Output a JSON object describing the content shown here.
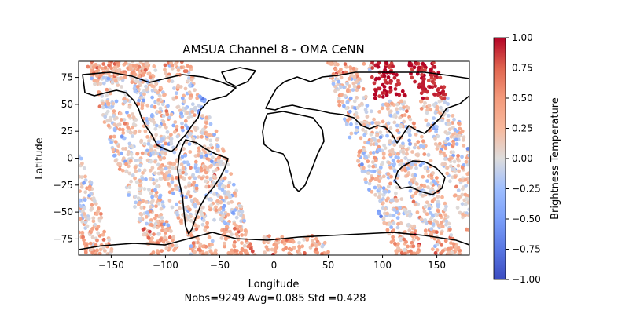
{
  "chart_data": {
    "type": "scatter",
    "title": "AMSUA Channel 8 - OMA CeNN",
    "xlabel": "Longitude",
    "ylabel": "Latitude",
    "xlim": [
      -180,
      180
    ],
    "ylim": [
      -90,
      90
    ],
    "xticks": [
      -150,
      -100,
      -50,
      0,
      50,
      100,
      150
    ],
    "yticks": [
      -75,
      -50,
      -25,
      0,
      25,
      50,
      75
    ],
    "stats_text": "Nobs=9249 Avg=0.085 Std =0.428",
    "colorbar": {
      "label": "Brightness Temperature",
      "colormap": "coolwarm",
      "vmin": -1.0,
      "vmax": 1.0,
      "ticks": [
        "1.00",
        "0.75",
        "0.50",
        "0.25",
        "0.00",
        "-0.25",
        "-0.50",
        "-0.75",
        "-1.00"
      ]
    },
    "grid": false,
    "series": [
      {
        "swaths": [
          {
            "lon_south": -100,
            "lon_north": -160,
            "lat_min": -90,
            "lat_max": 90
          },
          {
            "lon_south": -65,
            "lon_north": -125,
            "lat_min": -90,
            "lat_max": 90
          },
          {
            "lon_south": -30,
            "lon_north": -90,
            "lat_min": -90,
            "lat_max": 90
          },
          {
            "lon_south": 125,
            "lon_north": 60,
            "lat_min": -90,
            "lat_max": 90
          },
          {
            "lon_south": 160,
            "lon_north": 95,
            "lat_min": -90,
            "lat_max": 90
          },
          {
            "lon_south": 200,
            "lon_north": 135,
            "lat_min": -90,
            "lat_max": 90
          },
          {
            "lon_south": 20,
            "lon_north": 20,
            "lat_min": -90,
            "lat_max": -72
          },
          {
            "lon_south": -140,
            "lon_north": -140,
            "lat_min": 70,
            "lat_max": 90
          }
        ]
      }
    ]
  }
}
